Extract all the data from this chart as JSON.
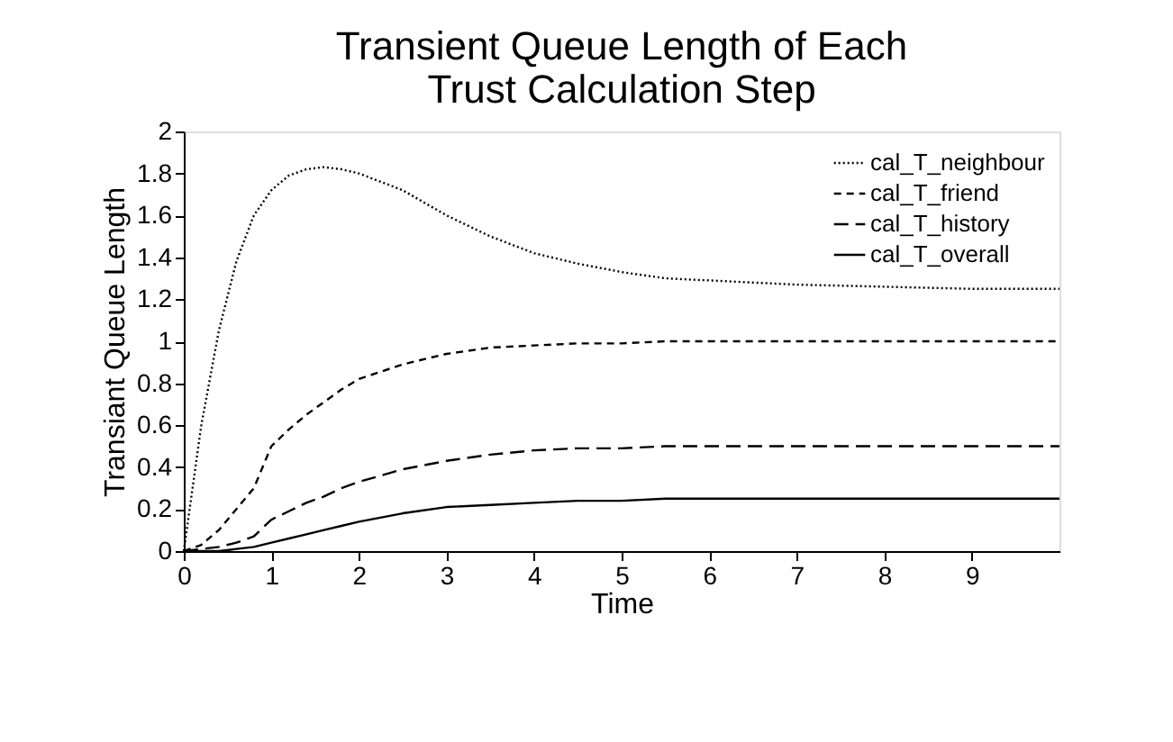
{
  "chart_data": {
    "type": "line",
    "title": "Transient Queue Length of Each Trust Calculation Step",
    "xlabel": "Time",
    "ylabel": "Transiant Queue Length",
    "x": [
      0,
      0.2,
      0.4,
      0.6,
      0.8,
      1.0,
      1.2,
      1.4,
      1.6,
      1.8,
      2.0,
      2.5,
      3.0,
      3.5,
      4.0,
      4.5,
      5.0,
      5.5,
      6.0,
      7.0,
      8.0,
      9.0,
      10.0
    ],
    "series": [
      {
        "name": "cal_T_neighbour",
        "color": "#000000",
        "line_style": "dotted",
        "values": [
          0,
          0.6,
          1.05,
          1.38,
          1.6,
          1.72,
          1.79,
          1.82,
          1.83,
          1.82,
          1.8,
          1.72,
          1.6,
          1.5,
          1.42,
          1.37,
          1.33,
          1.3,
          1.29,
          1.27,
          1.26,
          1.25,
          1.25
        ]
      },
      {
        "name": "cal_T_friend",
        "color": "#000000",
        "line_style": "dashed",
        "values": [
          0,
          0.03,
          0.1,
          0.2,
          0.3,
          0.5,
          0.58,
          0.65,
          0.71,
          0.77,
          0.82,
          0.89,
          0.94,
          0.97,
          0.98,
          0.99,
          0.99,
          1.0,
          1.0,
          1.0,
          1.0,
          1.0,
          1.0
        ]
      },
      {
        "name": "cal_T_history",
        "color": "#000000",
        "line_style": "dashed",
        "values": [
          0,
          0.01,
          0.02,
          0.04,
          0.07,
          0.15,
          0.19,
          0.23,
          0.26,
          0.3,
          0.33,
          0.39,
          0.43,
          0.46,
          0.48,
          0.49,
          0.49,
          0.5,
          0.5,
          0.5,
          0.5,
          0.5,
          0.5
        ]
      },
      {
        "name": "cal_T_overall",
        "color": "#000000",
        "line_style": "solid",
        "values": [
          0,
          0,
          0,
          0.01,
          0.02,
          0.04,
          0.06,
          0.08,
          0.1,
          0.12,
          0.14,
          0.18,
          0.21,
          0.22,
          0.23,
          0.24,
          0.24,
          0.25,
          0.25,
          0.25,
          0.25,
          0.25,
          0.25
        ]
      }
    ],
    "xlim": [
      0,
      10
    ],
    "xticks": [
      0,
      1,
      2,
      3,
      4,
      5,
      6,
      7,
      8,
      9
    ],
    "ylim": [
      0,
      2
    ],
    "yticks": [
      0,
      0.2,
      0.4,
      0.6,
      0.8,
      1,
      1.2,
      1.4,
      1.6,
      1.8,
      2
    ],
    "grid": false,
    "legend": "top right",
    "marker": "none"
  }
}
